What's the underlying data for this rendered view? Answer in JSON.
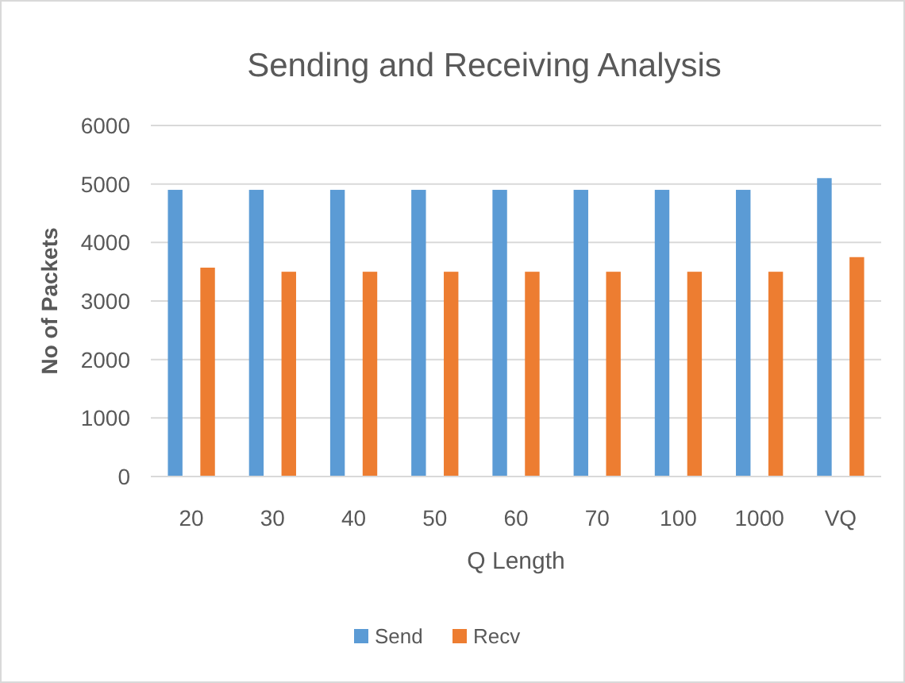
{
  "chart_data": {
    "type": "bar",
    "title": "Sending and Receiving Analysis",
    "xlabel": "Q Length",
    "ylabel": "No of Packets",
    "categories": [
      "20",
      "30",
      "40",
      "50",
      "60",
      "70",
      "100",
      "1000",
      "VQ"
    ],
    "series": [
      {
        "name": "Send",
        "color": "#5b9bd5",
        "values": [
          4900,
          4900,
          4900,
          4900,
          4900,
          4900,
          4900,
          4900,
          5100
        ]
      },
      {
        "name": "Recv",
        "color": "#ed7d31",
        "values": [
          3570,
          3500,
          3500,
          3500,
          3500,
          3500,
          3500,
          3500,
          3750
        ]
      }
    ],
    "ylim": [
      0,
      6000
    ],
    "yticks": [
      0,
      1000,
      2000,
      3000,
      4000,
      5000,
      6000
    ],
    "grid": "y",
    "legend": "bottom"
  }
}
